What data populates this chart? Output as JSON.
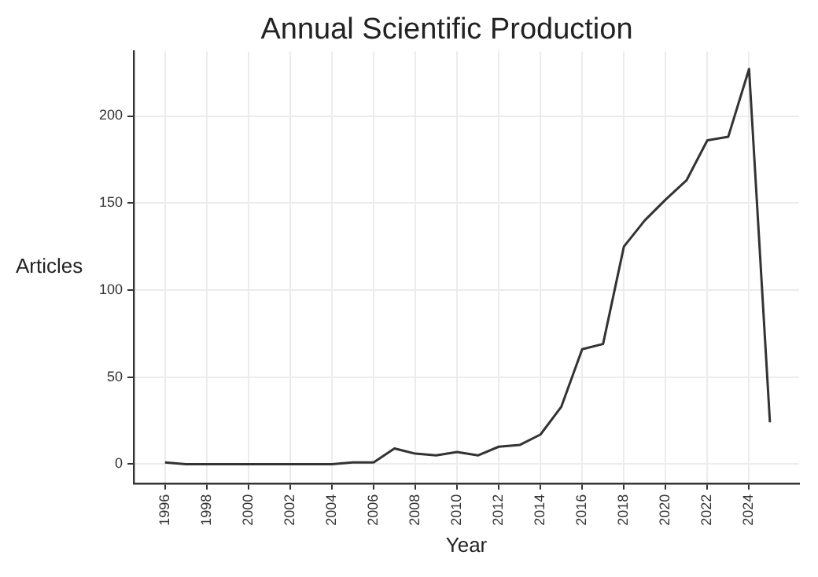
{
  "chart_data": {
    "type": "line",
    "title": "Annual Scientific Production",
    "xlabel": "Year",
    "ylabel": "Articles",
    "x": [
      1996,
      1997,
      1998,
      1999,
      2000,
      2001,
      2002,
      2003,
      2004,
      2005,
      2006,
      2007,
      2008,
      2009,
      2010,
      2011,
      2012,
      2013,
      2014,
      2015,
      2016,
      2017,
      2018,
      2019,
      2020,
      2021,
      2022,
      2023,
      2024,
      2025
    ],
    "series": [
      {
        "color": "#333333",
        "values": [
          1,
          0,
          0,
          0,
          0,
          0,
          0,
          0,
          0,
          1,
          1,
          9,
          6,
          5,
          7,
          5,
          10,
          11,
          17,
          33,
          66,
          69,
          125,
          140,
          152,
          163,
          186,
          188,
          227,
          24
        ]
      }
    ],
    "xlim": [
      1994.5,
      2026.4
    ],
    "xticks": [
      1996,
      1998,
      2000,
      2002,
      2004,
      2006,
      2008,
      2010,
      2012,
      2014,
      2016,
      2018,
      2020,
      2022,
      2024
    ],
    "ylim": [
      -11,
      237
    ],
    "yticks": [
      0,
      50,
      100,
      150,
      200
    ],
    "grid": true,
    "marker": "none",
    "line_style": "solid"
  }
}
